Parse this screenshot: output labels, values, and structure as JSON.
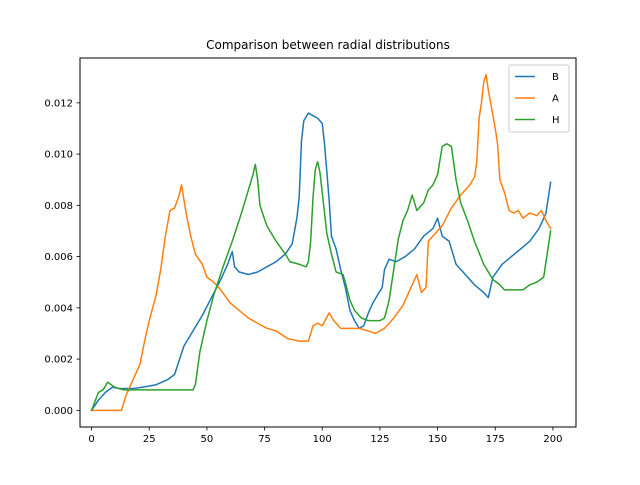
{
  "chart_data": {
    "type": "line",
    "title": "Comparison between radial distributions",
    "xlabel": "",
    "ylabel": "",
    "xlim": [
      -5,
      210
    ],
    "ylim": [
      -0.00065,
      0.01375
    ],
    "xticks": [
      0,
      25,
      50,
      75,
      100,
      125,
      150,
      175,
      200
    ],
    "yticks": [
      0.0,
      0.002,
      0.004,
      0.006,
      0.008,
      0.01,
      0.012
    ],
    "ytick_labels": [
      "0.000",
      "0.002",
      "0.004",
      "0.006",
      "0.008",
      "0.010",
      "0.012"
    ],
    "grid": false,
    "legend_position": "upper right",
    "series": [
      {
        "name": "B",
        "color": "#1f77b4",
        "points": [
          [
            0,
            0.0
          ],
          [
            3,
            0.0004
          ],
          [
            6,
            0.0007
          ],
          [
            9,
            0.0009
          ],
          [
            12,
            0.00085
          ],
          [
            18,
            0.00085
          ],
          [
            22,
            0.0009
          ],
          [
            28,
            0.001
          ],
          [
            33,
            0.0012
          ],
          [
            36,
            0.0014
          ],
          [
            40,
            0.0025
          ],
          [
            44,
            0.0031
          ],
          [
            48,
            0.0037
          ],
          [
            52,
            0.0044
          ],
          [
            56,
            0.0051
          ],
          [
            59,
            0.0057
          ],
          [
            61,
            0.0062
          ],
          [
            62,
            0.0056
          ],
          [
            64,
            0.0054
          ],
          [
            68,
            0.0053
          ],
          [
            72,
            0.0054
          ],
          [
            76,
            0.0056
          ],
          [
            80,
            0.0058
          ],
          [
            84,
            0.0061
          ],
          [
            87,
            0.0065
          ],
          [
            89,
            0.0075
          ],
          [
            90,
            0.0083
          ],
          [
            91,
            0.0105
          ],
          [
            92,
            0.0113
          ],
          [
            94,
            0.0116
          ],
          [
            96,
            0.0115
          ],
          [
            98,
            0.0114
          ],
          [
            100,
            0.0112
          ],
          [
            101,
            0.0104
          ],
          [
            103,
            0.0082
          ],
          [
            104,
            0.0068
          ],
          [
            106,
            0.0063
          ],
          [
            108,
            0.0055
          ],
          [
            110,
            0.0048
          ],
          [
            112,
            0.0039
          ],
          [
            114,
            0.0035
          ],
          [
            116,
            0.0032
          ],
          [
            118,
            0.0033
          ],
          [
            120,
            0.0038
          ],
          [
            122,
            0.0042
          ],
          [
            124,
            0.0045
          ],
          [
            126,
            0.0048
          ],
          [
            127,
            0.0055
          ],
          [
            129,
            0.0059
          ],
          [
            132,
            0.0058
          ],
          [
            136,
            0.006
          ],
          [
            140,
            0.0063
          ],
          [
            144,
            0.0068
          ],
          [
            148,
            0.0071
          ],
          [
            150,
            0.0075
          ],
          [
            152,
            0.0068
          ],
          [
            155,
            0.0066
          ],
          [
            158,
            0.0057
          ],
          [
            162,
            0.0053
          ],
          [
            166,
            0.0049
          ],
          [
            170,
            0.0046
          ],
          [
            172,
            0.0044
          ],
          [
            174,
            0.0052
          ],
          [
            178,
            0.0057
          ],
          [
            182,
            0.006
          ],
          [
            186,
            0.0063
          ],
          [
            190,
            0.0066
          ],
          [
            194,
            0.0071
          ],
          [
            197,
            0.0077
          ],
          [
            199,
            0.0089
          ]
        ]
      },
      {
        "name": "A",
        "color": "#ff7f0e",
        "points": [
          [
            0,
            0.0
          ],
          [
            5,
            0.0
          ],
          [
            10,
            0.0
          ],
          [
            13,
            0.0
          ],
          [
            15,
            0.0006
          ],
          [
            18,
            0.0012
          ],
          [
            21,
            0.0018
          ],
          [
            23,
            0.0027
          ],
          [
            25,
            0.0035
          ],
          [
            28,
            0.0045
          ],
          [
            30,
            0.0055
          ],
          [
            32,
            0.0068
          ],
          [
            34,
            0.0078
          ],
          [
            36,
            0.0079
          ],
          [
            38,
            0.0084
          ],
          [
            39,
            0.0088
          ],
          [
            41,
            0.0077
          ],
          [
            43,
            0.0068
          ],
          [
            45,
            0.0061
          ],
          [
            48,
            0.0057
          ],
          [
            50,
            0.0052
          ],
          [
            53,
            0.005
          ],
          [
            56,
            0.0047
          ],
          [
            60,
            0.0042
          ],
          [
            64,
            0.0039
          ],
          [
            68,
            0.0036
          ],
          [
            72,
            0.0034
          ],
          [
            76,
            0.0032
          ],
          [
            80,
            0.0031
          ],
          [
            85,
            0.0028
          ],
          [
            90,
            0.0027
          ],
          [
            94,
            0.0027
          ],
          [
            96,
            0.0033
          ],
          [
            98,
            0.0034
          ],
          [
            100,
            0.0033
          ],
          [
            103,
            0.0038
          ],
          [
            105,
            0.0035
          ],
          [
            108,
            0.0032
          ],
          [
            112,
            0.0032
          ],
          [
            116,
            0.0032
          ],
          [
            120,
            0.0031
          ],
          [
            123,
            0.003
          ],
          [
            127,
            0.0032
          ],
          [
            131,
            0.0036
          ],
          [
            135,
            0.0041
          ],
          [
            139,
            0.0049
          ],
          [
            141,
            0.0053
          ],
          [
            143,
            0.0046
          ],
          [
            145,
            0.0048
          ],
          [
            146,
            0.0066
          ],
          [
            149,
            0.0069
          ],
          [
            152,
            0.0072
          ],
          [
            156,
            0.0079
          ],
          [
            160,
            0.0084
          ],
          [
            164,
            0.0088
          ],
          [
            166,
            0.0091
          ],
          [
            167,
            0.0097
          ],
          [
            168,
            0.0114
          ],
          [
            169,
            0.012
          ],
          [
            170,
            0.0128
          ],
          [
            171,
            0.0131
          ],
          [
            172,
            0.0125
          ],
          [
            174,
            0.0115
          ],
          [
            175,
            0.011
          ],
          [
            176,
            0.0104
          ],
          [
            177,
            0.009
          ],
          [
            179,
            0.0085
          ],
          [
            181,
            0.0078
          ],
          [
            183,
            0.0077
          ],
          [
            185,
            0.0078
          ],
          [
            187,
            0.0075
          ],
          [
            190,
            0.0077
          ],
          [
            193,
            0.0076
          ],
          [
            195,
            0.0078
          ],
          [
            197,
            0.0074
          ],
          [
            199,
            0.0071
          ]
        ]
      },
      {
        "name": "H",
        "color": "#2ca02c",
        "points": [
          [
            0,
            0.0
          ],
          [
            3,
            0.0007
          ],
          [
            5,
            0.0008
          ],
          [
            7,
            0.0011
          ],
          [
            10,
            0.0009
          ],
          [
            14,
            0.0008
          ],
          [
            20,
            0.0008
          ],
          [
            30,
            0.0008
          ],
          [
            40,
            0.0008
          ],
          [
            44,
            0.0008
          ],
          [
            45,
            0.001
          ],
          [
            47,
            0.0023
          ],
          [
            50,
            0.0035
          ],
          [
            53,
            0.0045
          ],
          [
            57,
            0.0056
          ],
          [
            61,
            0.0066
          ],
          [
            65,
            0.0077
          ],
          [
            68,
            0.0086
          ],
          [
            70,
            0.0092
          ],
          [
            71,
            0.0096
          ],
          [
            72,
            0.009
          ],
          [
            73,
            0.008
          ],
          [
            76,
            0.0072
          ],
          [
            80,
            0.0066
          ],
          [
            84,
            0.0061
          ],
          [
            86,
            0.0058
          ],
          [
            90,
            0.0057
          ],
          [
            93,
            0.0056
          ],
          [
            94,
            0.0058
          ],
          [
            95,
            0.0066
          ],
          [
            96,
            0.0083
          ],
          [
            97,
            0.0094
          ],
          [
            98,
            0.0097
          ],
          [
            99,
            0.0093
          ],
          [
            100,
            0.0085
          ],
          [
            102,
            0.0069
          ],
          [
            104,
            0.0061
          ],
          [
            106,
            0.0054
          ],
          [
            109,
            0.0053
          ],
          [
            110,
            0.005
          ],
          [
            112,
            0.0043
          ],
          [
            114,
            0.0039
          ],
          [
            117,
            0.0036
          ],
          [
            120,
            0.0035
          ],
          [
            125,
            0.0035
          ],
          [
            127,
            0.0036
          ],
          [
            129,
            0.0043
          ],
          [
            131,
            0.0055
          ],
          [
            133,
            0.0067
          ],
          [
            135,
            0.0074
          ],
          [
            137,
            0.0078
          ],
          [
            139,
            0.0084
          ],
          [
            141,
            0.0078
          ],
          [
            144,
            0.0081
          ],
          [
            146,
            0.0086
          ],
          [
            148,
            0.0088
          ],
          [
            150,
            0.0092
          ],
          [
            152,
            0.0103
          ],
          [
            154,
            0.0104
          ],
          [
            156,
            0.0103
          ],
          [
            158,
            0.009
          ],
          [
            160,
            0.0081
          ],
          [
            163,
            0.0074
          ],
          [
            166,
            0.0066
          ],
          [
            170,
            0.0057
          ],
          [
            174,
            0.0051
          ],
          [
            177,
            0.0049
          ],
          [
            179,
            0.0047
          ],
          [
            183,
            0.0047
          ],
          [
            187,
            0.0047
          ],
          [
            190,
            0.0049
          ],
          [
            193,
            0.005
          ],
          [
            196,
            0.0052
          ],
          [
            198,
            0.0064
          ],
          [
            199,
            0.007
          ]
        ]
      }
    ]
  }
}
